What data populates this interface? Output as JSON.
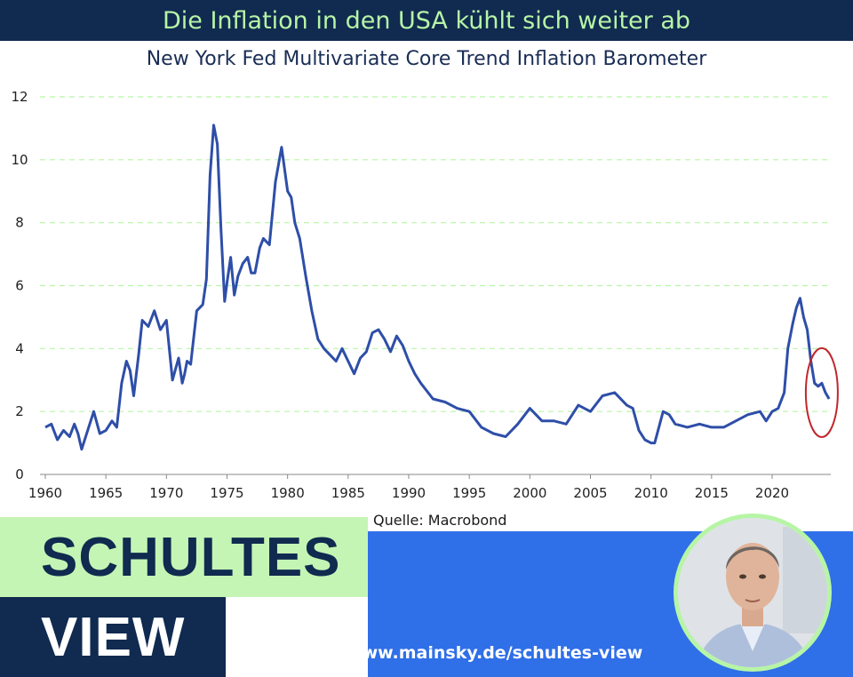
{
  "header": {
    "title": "Die Inflation in den USA kühlt sich weiter ab",
    "subtitle": "New York Fed Multivariate Core Trend Inflation Barometer"
  },
  "source": "Quelle: Macrobond",
  "brand": {
    "line1": "SCHULTES",
    "line2": "VIEW",
    "url": "https://www.mainsky.de/schultes-view"
  },
  "colors": {
    "title_bar": "#102a50",
    "title_text": "#b7f5a6",
    "line": "#2e4ea8",
    "grid": "#b7f5a6",
    "highlight_circle": "#c0272d",
    "brand_green": "#c4f5b4",
    "brand_navy": "#102a50",
    "brand_blue": "#2f6fe8"
  },
  "chart_data": {
    "type": "line",
    "title": "",
    "xlabel": "",
    "ylabel": "",
    "xlim": [
      1960,
      2025
    ],
    "ylim": [
      0,
      12
    ],
    "xticks": [
      1960,
      1965,
      1970,
      1975,
      1980,
      1985,
      1990,
      1995,
      2000,
      2005,
      2010,
      2015,
      2020
    ],
    "yticks": [
      0,
      2,
      4,
      6,
      8,
      10,
      12
    ],
    "grid": "horizontal dashed",
    "annotation": "red ellipse around 2023.5-2024.5",
    "series": [
      {
        "x": [
          1960,
          1960.5,
          1961,
          1961.5,
          1962,
          1962.4,
          1962.7,
          1963,
          1963.5,
          1964,
          1964.5,
          1965,
          1965.5,
          1965.9,
          1966.3,
          1966.7,
          1967,
          1967.3,
          1967.7,
          1968,
          1968.5,
          1969,
          1969.5,
          1970,
          1970.5,
          1971,
          1971.3,
          1971.5,
          1971.7,
          1972,
          1972.5,
          1973,
          1973.3,
          1973.6,
          1973.9,
          1974.2,
          1974.5,
          1974.8,
          1975,
          1975.3,
          1975.6,
          1975.9,
          1976.3,
          1976.7,
          1977,
          1977.3,
          1977.7,
          1978,
          1978.5,
          1979,
          1979.5,
          1980,
          1980.3,
          1980.6,
          1981,
          1981.5,
          1982,
          1982.5,
          1983,
          1983.5,
          1984,
          1984.5,
          1985,
          1985.5,
          1986,
          1986.5,
          1987,
          1987.5,
          1988,
          1988.5,
          1989,
          1989.5,
          1990,
          1990.5,
          1991,
          1992,
          1993,
          1994,
          1995,
          1996,
          1997,
          1998,
          1999,
          2000,
          2001,
          2002,
          2003,
          2004,
          2005,
          2006,
          2007,
          2008,
          2008.5,
          2009,
          2009.5,
          2010,
          2010.3,
          2011,
          2011.5,
          2012,
          2013,
          2014,
          2015,
          2016,
          2017,
          2018,
          2019,
          2019.5,
          2020,
          2020.5,
          2021,
          2021.3,
          2021.7,
          2022,
          2022.3,
          2022.6,
          2022.9,
          2023.2,
          2023.5,
          2023.8,
          2024.1,
          2024.4,
          2024.7
        ],
        "y": [
          1.5,
          1.6,
          1.1,
          1.4,
          1.2,
          1.6,
          1.3,
          0.8,
          1.4,
          2.0,
          1.3,
          1.4,
          1.7,
          1.5,
          2.9,
          3.6,
          3.3,
          2.5,
          3.8,
          4.9,
          4.7,
          5.2,
          4.6,
          4.9,
          3.0,
          3.7,
          2.9,
          3.2,
          3.6,
          3.5,
          5.2,
          5.4,
          6.2,
          9.5,
          11.1,
          10.5,
          7.8,
          5.5,
          6.1,
          6.9,
          5.7,
          6.3,
          6.7,
          6.9,
          6.4,
          6.4,
          7.2,
          7.5,
          7.3,
          9.3,
          10.4,
          9.0,
          8.8,
          8.0,
          7.5,
          6.3,
          5.2,
          4.3,
          4.0,
          3.8,
          3.6,
          4.0,
          3.6,
          3.2,
          3.7,
          3.9,
          4.5,
          4.6,
          4.3,
          3.9,
          4.4,
          4.1,
          3.6,
          3.2,
          2.9,
          2.4,
          2.3,
          2.1,
          2.0,
          1.5,
          1.3,
          1.2,
          1.6,
          2.1,
          1.7,
          1.7,
          1.6,
          2.2,
          2.0,
          2.5,
          2.6,
          2.2,
          2.1,
          1.4,
          1.1,
          1.0,
          1.0,
          2.0,
          1.9,
          1.6,
          1.5,
          1.6,
          1.5,
          1.5,
          1.7,
          1.9,
          2.0,
          1.7,
          2.0,
          2.1,
          2.6,
          4.0,
          4.8,
          5.3,
          5.6,
          5.0,
          4.6,
          3.6,
          2.9,
          2.8,
          2.9,
          2.6,
          2.4
        ]
      }
    ]
  }
}
